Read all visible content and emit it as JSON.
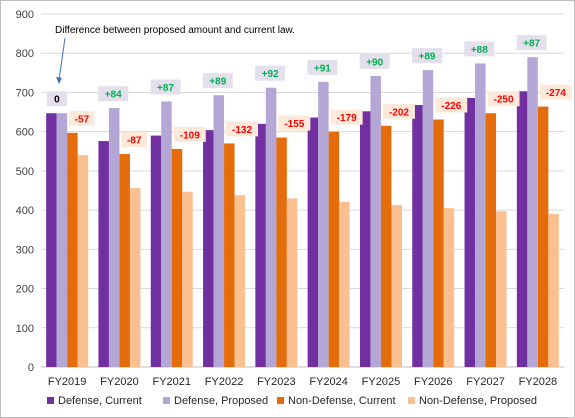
{
  "chart_data": {
    "type": "bar",
    "title": "",
    "xlabel": "",
    "ylabel": "",
    "ylim": [
      0,
      900
    ],
    "yticks": [
      0,
      100,
      200,
      300,
      400,
      500,
      600,
      700,
      800,
      900
    ],
    "grid": true,
    "legend_position": "bottom",
    "categories": [
      "FY2019",
      "FY2020",
      "FY2021",
      "FY2022",
      "FY2023",
      "FY2024",
      "FY2025",
      "FY2026",
      "FY2027",
      "FY2028"
    ],
    "series": [
      {
        "name": "Defense, Current",
        "color": "#7030a0",
        "values": [
          647,
          576,
          590,
          604,
          620,
          636,
          652,
          668,
          686,
          703
        ]
      },
      {
        "name": "Defense, Proposed",
        "color": "#b4a7d6",
        "values": [
          647,
          660,
          677,
          693,
          712,
          727,
          742,
          757,
          774,
          790
        ]
      },
      {
        "name": "Non-Defense, Current",
        "color": "#e46c0a",
        "values": [
          597,
          543,
          556,
          570,
          585,
          600,
          615,
          631,
          647,
          664
        ]
      },
      {
        "name": "Non-Defense, Proposed",
        "color": "#fac090",
        "values": [
          540,
          456,
          447,
          438,
          430,
          421,
          413,
          405,
          397,
          390
        ]
      }
    ],
    "defense_diff_labels": [
      "0",
      "+84",
      "+87",
      "+89",
      "+92",
      "+91",
      "+90",
      "+89",
      "+88",
      "+87"
    ],
    "nondefense_diff_labels": [
      "-57",
      "-87",
      "-109",
      "-132",
      "-155",
      "-179",
      "-202",
      "-226",
      "-250",
      "-274"
    ],
    "diff_colors": {
      "positive": "#00b050",
      "negative": "#ff0000",
      "zero": "#000000"
    },
    "annotation": "Difference between proposed amount and current law."
  }
}
